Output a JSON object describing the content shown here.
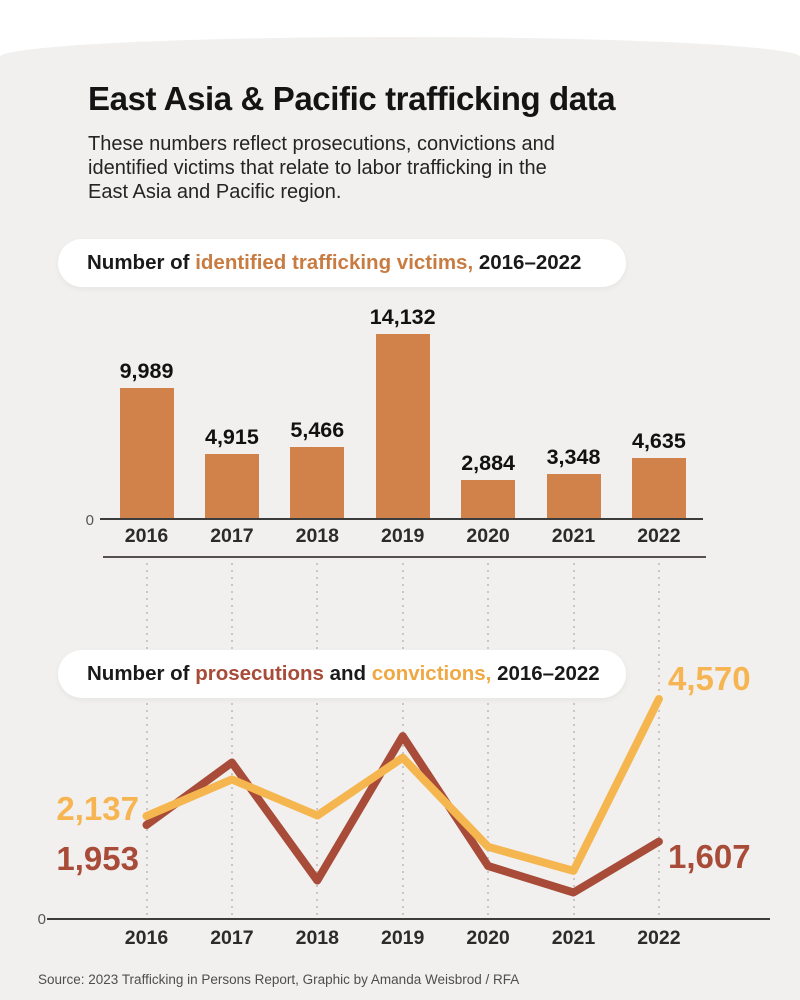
{
  "header": {
    "title": "East Asia & Pacific trafficking data",
    "subtitle_lines": [
      "These numbers reflect prosecutions, convictions and",
      "identified victims that relate to labor trafficking in the",
      "East Asia and Pacific region."
    ]
  },
  "footer": {
    "source": "Source: 2023 Trafficking in Persons Report, Graphic by Amanda Weisbrod / RFA"
  },
  "colors": {
    "background": "#f1f0ee",
    "panel_white": "#ffffff",
    "bar_orange": "#d1814a",
    "accent_orange_text": "#c87c42",
    "prosecutions_red": "#a84b38",
    "convictions_yellow": "#f5b54f",
    "axis_dark": "#3c3c3c",
    "gridline_dotted": "#c9c6c3",
    "text_dark": "#161616",
    "text_muted": "#4f4e4c"
  },
  "chart_data": [
    {
      "type": "bar",
      "title": {
        "prefix": "Number of ",
        "accent": "identified trafficking victims,",
        "suffix": " 2016–2022"
      },
      "categories": [
        "2016",
        "2017",
        "2018",
        "2019",
        "2020",
        "2021",
        "2022"
      ],
      "values": [
        9989,
        4915,
        5466,
        14132,
        2884,
        3348,
        4635
      ],
      "value_labels": [
        "9,989",
        "4,915",
        "5,466",
        "14,132",
        "2,884",
        "3,348",
        "4,635"
      ],
      "y_zero_label": "0",
      "ylim": [
        0,
        14500
      ],
      "grid": false,
      "bar_color": "#d1814a",
      "legend_position": "none"
    },
    {
      "type": "line",
      "title": {
        "prefix": "Number of ",
        "accent_prosecutions": "prosecutions",
        "mid": " and ",
        "accent_convictions": "convictions,",
        "suffix": " 2016–2022"
      },
      "categories": [
        "2016",
        "2017",
        "2018",
        "2019",
        "2020",
        "2021",
        "2022"
      ],
      "series": [
        {
          "name": "prosecutions",
          "color": "#a84b38",
          "values": [
            1953,
            3250,
            800,
            3800,
            1100,
            550,
            1607
          ],
          "first_point_label": "1,953",
          "last_point_label": "1,607"
        },
        {
          "name": "convictions",
          "color": "#f5b54f",
          "values": [
            2137,
            2900,
            2150,
            3350,
            1500,
            1000,
            4570
          ],
          "first_point_label": "2,137",
          "last_point_label": "4,570"
        }
      ],
      "y_zero_label": "0",
      "ylim": [
        0,
        4570
      ],
      "grid": "vertical-dotted",
      "legend_position": "inline-labels"
    }
  ]
}
